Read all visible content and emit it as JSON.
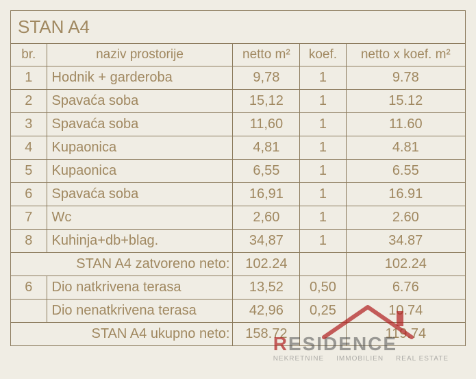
{
  "title": "STAN A4",
  "columns": {
    "br": "br.",
    "name": "naziv prostorije",
    "netto": "netto m²",
    "koef": "koef.",
    "result": "netto x koef. m²"
  },
  "rows": [
    {
      "br": "1",
      "name": "Hodnik + garderoba",
      "netto": "9,78",
      "koef": "1",
      "result": "9.78"
    },
    {
      "br": "2",
      "name": "Spavaća soba",
      "netto": "15,12",
      "koef": "1",
      "result": "15.12"
    },
    {
      "br": "3",
      "name": "Spavaća soba",
      "netto": "11,60",
      "koef": "1",
      "result": "11.60"
    },
    {
      "br": "4",
      "name": "Kupaonica",
      "netto": "4,81",
      "koef": "1",
      "result": "4.81"
    },
    {
      "br": "5",
      "name": "Kupaonica",
      "netto": "6,55",
      "koef": "1",
      "result": "6.55"
    },
    {
      "br": "6",
      "name": "Spavaća soba",
      "netto": "16,91",
      "koef": "1",
      "result": "16.91"
    },
    {
      "br": "7",
      "name": "Wc",
      "netto": "2,60",
      "koef": "1",
      "result": "2.60"
    },
    {
      "br": "8",
      "name": "Kuhinja+db+blag.",
      "netto": "34,87",
      "koef": "1",
      "result": "34.87"
    }
  ],
  "subtotal": {
    "label": "STAN A4 zatvoreno neto:",
    "netto": "102.24",
    "koef": "",
    "result": "102.24"
  },
  "extra_rows": [
    {
      "br": "6",
      "name": "Dio natkrivena terasa",
      "netto": "13,52",
      "koef": "0,50",
      "result": "6.76"
    },
    {
      "br": "",
      "name": "Dio nenatkrivena terasa",
      "netto": "42,96",
      "koef": "0,25",
      "result": "10.74"
    }
  ],
  "total": {
    "label": "STAN A4 ukupno neto:",
    "netto": "158.72",
    "koef": "",
    "result": "119.74"
  },
  "watermark": {
    "main_prefix": "R",
    "main_rest": "ESIDENCE",
    "sub1": "NEKRETNINE",
    "sub2": "IMMOBILIEN",
    "sub3": "REAL ESTATE",
    "roof_color": "rgba(178,34,34,0.72)"
  },
  "style": {
    "border_color": "#8b7a5c",
    "text_color": "#a08860",
    "background": "#f0ede4"
  }
}
